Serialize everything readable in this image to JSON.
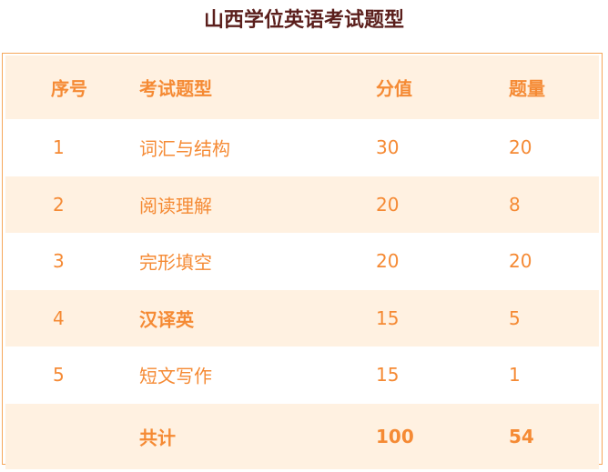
{
  "title": "山西学位英语考试题型",
  "colors": {
    "text": "#f58a34",
    "stripe": "#fff1e1",
    "border": "#f6a75a",
    "title": "#5b1f1c"
  },
  "headers": [
    "序号",
    "考试题型",
    "分值",
    "题量"
  ],
  "rows": [
    [
      "1",
      "词汇与结构",
      "30",
      "20"
    ],
    [
      "2",
      "阅读理解",
      "20",
      "8"
    ],
    [
      "3",
      "完形填空",
      "20",
      "20"
    ],
    [
      "4",
      "汉译英",
      "15",
      "5"
    ],
    [
      "5",
      "短文写作",
      "15",
      "1"
    ]
  ],
  "total": [
    "",
    "共计",
    "100",
    "54"
  ]
}
